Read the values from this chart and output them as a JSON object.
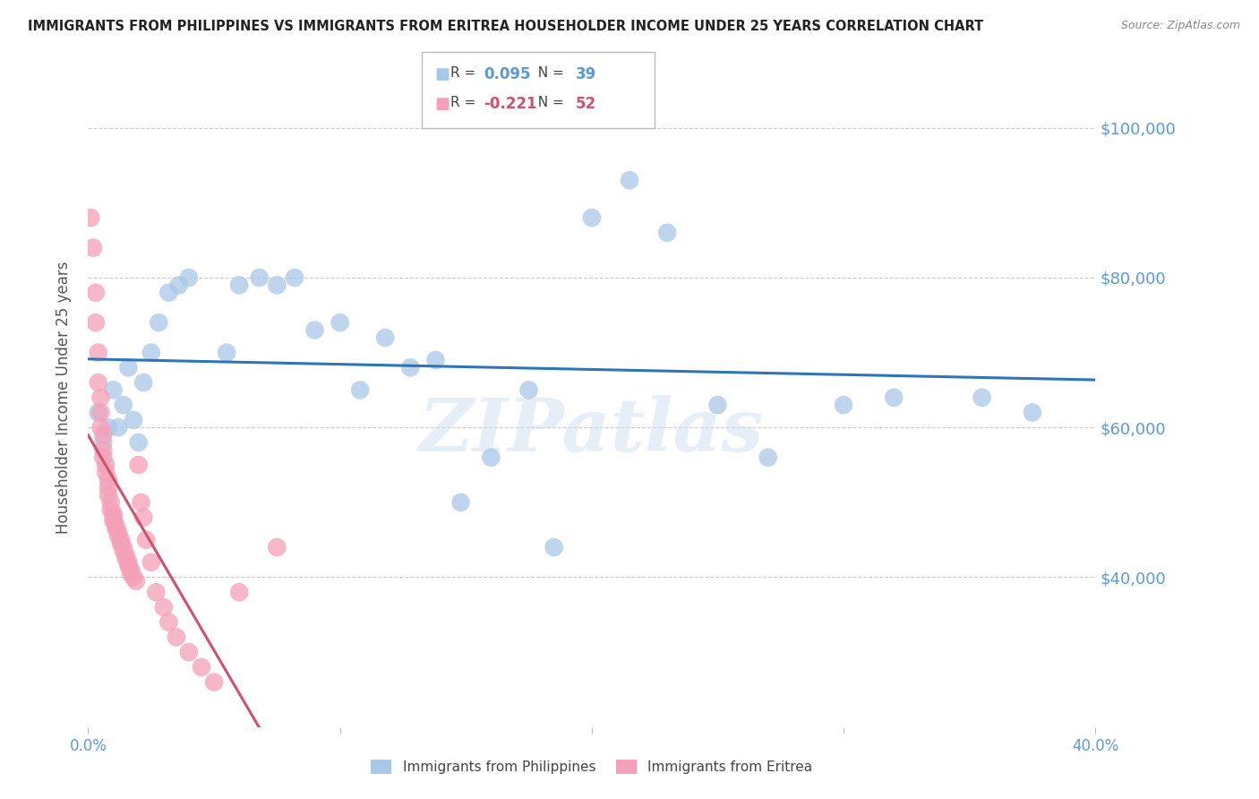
{
  "title": "IMMIGRANTS FROM PHILIPPINES VS IMMIGRANTS FROM ERITREA HOUSEHOLDER INCOME UNDER 25 YEARS CORRELATION CHART",
  "source": "Source: ZipAtlas.com",
  "ylabel": "Householder Income Under 25 years",
  "yticks": [
    40000,
    60000,
    80000,
    100000
  ],
  "ytick_labels": [
    "$40,000",
    "$60,000",
    "$80,000",
    "$100,000"
  ],
  "xlim": [
    0.0,
    0.4
  ],
  "ylim": [
    20000,
    108000
  ],
  "legend1_label": "Immigrants from Philippines",
  "legend2_label": "Immigrants from Eritrea",
  "r1": 0.095,
  "n1": 39,
  "r2": -0.221,
  "n2": 52,
  "color_blue": "#A8C8E8",
  "color_pink": "#F4A0B8",
  "line_color_blue": "#2E75B6",
  "line_color_pink": "#D05070",
  "watermark": "ZIPatlas",
  "philippines_x": [
    0.004,
    0.006,
    0.008,
    0.01,
    0.012,
    0.014,
    0.016,
    0.018,
    0.02,
    0.022,
    0.025,
    0.028,
    0.032,
    0.036,
    0.04,
    0.055,
    0.06,
    0.068,
    0.075,
    0.082,
    0.09,
    0.1,
    0.108,
    0.118,
    0.128,
    0.138,
    0.148,
    0.16,
    0.175,
    0.185,
    0.2,
    0.215,
    0.23,
    0.25,
    0.27,
    0.3,
    0.32,
    0.355,
    0.375
  ],
  "philippines_y": [
    62000,
    58000,
    60000,
    65000,
    60000,
    63000,
    68000,
    61000,
    58000,
    66000,
    70000,
    74000,
    78000,
    79000,
    80000,
    70000,
    79000,
    80000,
    79000,
    80000,
    73000,
    74000,
    65000,
    72000,
    68000,
    69000,
    50000,
    56000,
    65000,
    44000,
    88000,
    93000,
    86000,
    63000,
    56000,
    63000,
    64000,
    64000,
    62000
  ],
  "eritrea_x": [
    0.001,
    0.002,
    0.003,
    0.003,
    0.004,
    0.004,
    0.005,
    0.005,
    0.005,
    0.006,
    0.006,
    0.006,
    0.007,
    0.007,
    0.008,
    0.008,
    0.008,
    0.009,
    0.009,
    0.01,
    0.01,
    0.01,
    0.011,
    0.011,
    0.012,
    0.012,
    0.013,
    0.013,
    0.014,
    0.014,
    0.015,
    0.015,
    0.016,
    0.016,
    0.017,
    0.017,
    0.018,
    0.019,
    0.02,
    0.021,
    0.022,
    0.023,
    0.025,
    0.027,
    0.03,
    0.032,
    0.035,
    0.04,
    0.045,
    0.05,
    0.06,
    0.075
  ],
  "eritrea_y": [
    88000,
    84000,
    78000,
    74000,
    70000,
    66000,
    64000,
    62000,
    60000,
    59000,
    57000,
    56000,
    55000,
    54000,
    53000,
    52000,
    51000,
    50000,
    49000,
    48500,
    48000,
    47500,
    47000,
    46500,
    46000,
    45500,
    45000,
    44500,
    44000,
    43500,
    43000,
    42500,
    42000,
    41500,
    41000,
    40500,
    40000,
    39500,
    55000,
    50000,
    48000,
    45000,
    42000,
    38000,
    36000,
    34000,
    32000,
    30000,
    28000,
    26000,
    38000,
    44000
  ]
}
